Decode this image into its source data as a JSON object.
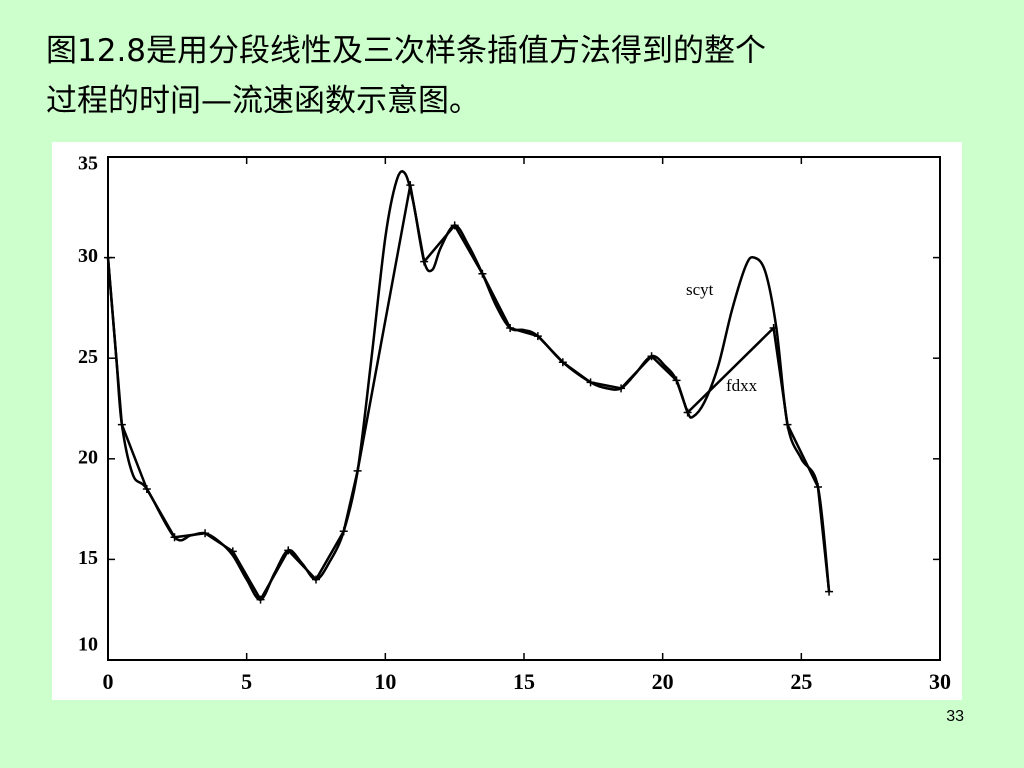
{
  "title_lines": [
    "图12.8是用分段线性及三次样条插值方法得到的整个",
    "过程的时间—流速函数示意图。"
  ],
  "page_number": "33",
  "chart_data": {
    "type": "line",
    "xlim": [
      0,
      30
    ],
    "xticks": [
      0,
      5,
      10,
      15,
      20,
      25,
      30
    ],
    "ylim": [
      10,
      35
    ],
    "yticks": [
      10,
      15,
      20,
      25,
      30,
      35
    ],
    "grid": false,
    "series": [
      {
        "name": "fdxx",
        "color": "#000000",
        "markers": true,
        "x": [
          0,
          0.5,
          1.4,
          2.4,
          3.5,
          4.5,
          5.5,
          6.5,
          7.5,
          8.5,
          9.0,
          10.9,
          11.4,
          12.5,
          13.5,
          14.5,
          15.5,
          16.4,
          17.4,
          18.5,
          19.6,
          20.5,
          20.9,
          24.0,
          24.5,
          25.6,
          26.0
        ],
        "values": [
          30,
          21.7,
          18.5,
          16.1,
          16.3,
          15.4,
          13.0,
          15.45,
          14.0,
          16.4,
          19.4,
          33.6,
          29.8,
          31.6,
          29.2,
          26.5,
          26.1,
          24.8,
          23.8,
          23.5,
          25.1,
          23.9,
          22.3,
          26.5,
          21.7,
          18.6,
          13.4
        ]
      },
      {
        "name": "scyt",
        "color": "#000000",
        "markers": false,
        "x": [
          0,
          0.3,
          0.5,
          0.9,
          1.4,
          2.4,
          3.0,
          3.5,
          4.0,
          4.5,
          5.0,
          5.5,
          6.0,
          6.5,
          7.0,
          7.5,
          8.0,
          8.5,
          9.0,
          9.5,
          10.0,
          10.4,
          10.7,
          11.0,
          11.4,
          11.7,
          12.0,
          12.5,
          13.0,
          13.5,
          14.0,
          14.5,
          15.0,
          15.5,
          16.4,
          17.4,
          18.0,
          18.5,
          19.0,
          19.6,
          20.1,
          20.5,
          20.9,
          21.1,
          21.5,
          22.0,
          22.5,
          23.0,
          23.3,
          23.7,
          24.1,
          24.5,
          25.0,
          25.6,
          26.0
        ],
        "values": [
          30,
          25,
          21.7,
          19.2,
          18.5,
          16.1,
          16.2,
          16.3,
          15.9,
          15.2,
          14.0,
          13.0,
          14.3,
          15.45,
          14.8,
          14.0,
          14.9,
          16.4,
          19.4,
          25,
          31.0,
          33.8,
          34.2,
          32.8,
          29.8,
          29.4,
          30.5,
          31.6,
          30.6,
          29.2,
          27.6,
          26.5,
          26.4,
          26.1,
          24.8,
          23.8,
          23.5,
          23.5,
          24.2,
          25.1,
          24.6,
          23.9,
          22.3,
          22.1,
          22.8,
          24.6,
          27.4,
          29.6,
          30.0,
          29.3,
          26.5,
          21.7,
          20.0,
          18.6,
          13.4
        ]
      }
    ]
  }
}
